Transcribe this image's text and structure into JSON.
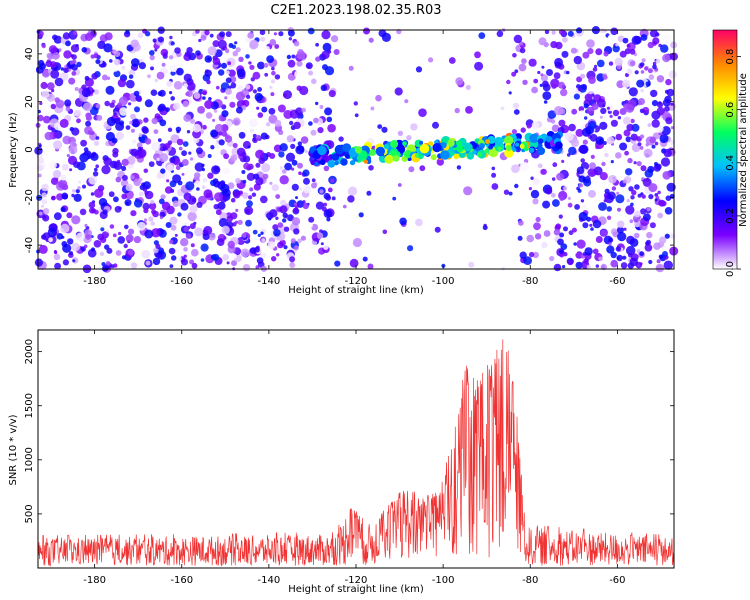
{
  "title": "C2E1.2023.198.02.35.R03",
  "chart_data": [
    {
      "type": "heatmap",
      "xlabel": "Height of straight line (km)",
      "ylabel": "Frequency (Hz)",
      "xlim": [
        -193,
        -47
      ],
      "ylim": [
        -50,
        50
      ],
      "xticks": [
        -180,
        -160,
        -140,
        -120,
        -100,
        -80,
        -60
      ],
      "yticks": [
        -40,
        -20,
        0,
        20,
        40
      ],
      "colorbar": {
        "label": "Normalized spectral amplitude",
        "range": [
          0.0,
          0.9
        ],
        "ticks": [
          0.0,
          0.2,
          0.4,
          0.6,
          0.8
        ],
        "colors": [
          "#ffffff",
          "#7a00ff",
          "#0000ff",
          "#00c0ff",
          "#00ff60",
          "#ffff00",
          "#ff8800",
          "#ff0066"
        ]
      },
      "signal_band": {
        "x_range": [
          -130,
          -73
        ],
        "frequency_center_at_start": -3,
        "frequency_center_at_end": 3,
        "peak_amplitude": 0.85
      },
      "sparse_region_x": [
        -126,
        -84
      ]
    },
    {
      "type": "line",
      "xlabel": "Height of straight line (km)",
      "ylabel": "SNR (10 * v/v)",
      "xlim": [
        -193,
        -47
      ],
      "ylim": [
        0,
        2200
      ],
      "xticks": [
        -180,
        -160,
        -140,
        -120,
        -100,
        -80,
        -60
      ],
      "yticks": [
        500,
        1000,
        1500,
        2000
      ],
      "color": "#f03232",
      "baseline_snr": 160,
      "envelope": [
        {
          "x": -193,
          "max": 300
        },
        {
          "x": -125,
          "max": 330
        },
        {
          "x": -121,
          "max": 590
        },
        {
          "x": -117,
          "max": 430
        },
        {
          "x": -112,
          "max": 610
        },
        {
          "x": -108,
          "max": 790
        },
        {
          "x": -105,
          "max": 650
        },
        {
          "x": -101,
          "max": 730
        },
        {
          "x": -98,
          "max": 1150
        },
        {
          "x": -95,
          "max": 1880
        },
        {
          "x": -92,
          "max": 1850
        },
        {
          "x": -89,
          "max": 1900
        },
        {
          "x": -86,
          "max": 2160
        },
        {
          "x": -84,
          "max": 1900
        },
        {
          "x": -81,
          "max": 400
        },
        {
          "x": -47,
          "max": 300
        }
      ]
    }
  ]
}
